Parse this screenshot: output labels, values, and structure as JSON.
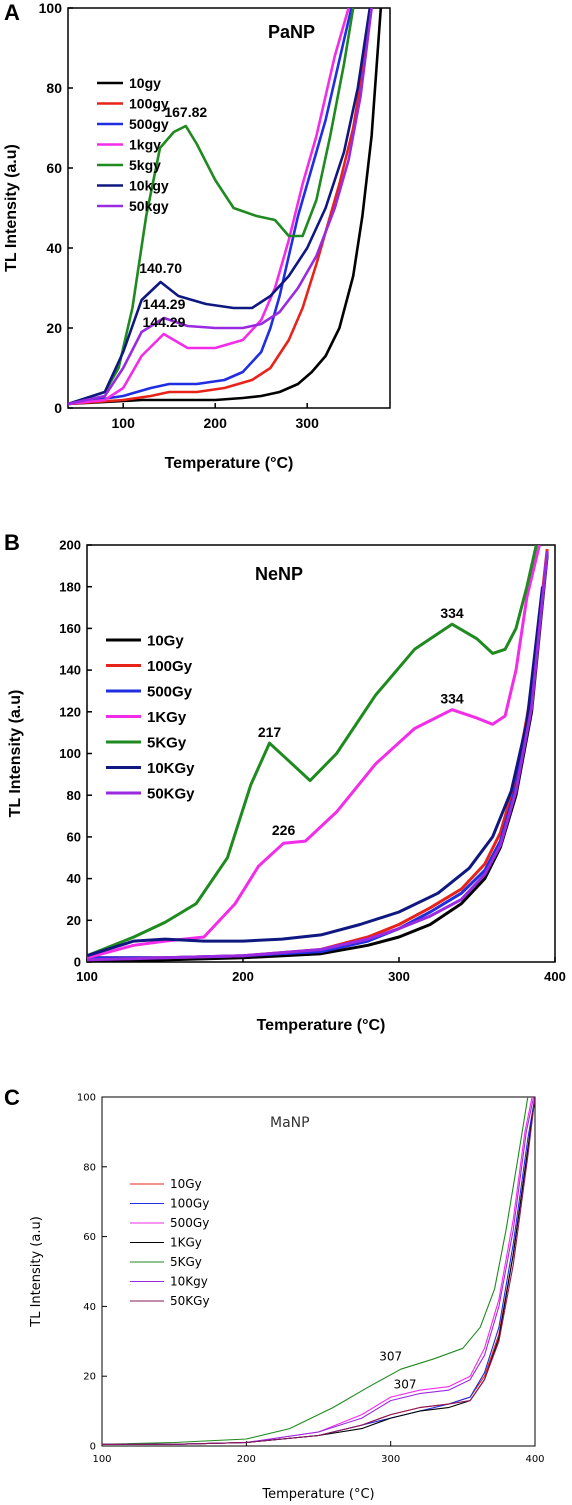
{
  "chart_data": [
    {
      "type": "line",
      "panel_label": "A",
      "title": "PaNP",
      "xlabel": "Temperature (°C)",
      "ylabel": "TL Intensity (a.u)",
      "xlim": [
        40,
        390
      ],
      "ylim": [
        0,
        100
      ],
      "xticks": [
        100,
        200,
        300
      ],
      "yticks": [
        0,
        20,
        40,
        60,
        80,
        100
      ],
      "legend": "top-left",
      "series": [
        {
          "name": "10gy",
          "color": "#000000",
          "x": [
            40,
            80,
            120,
            160,
            200,
            230,
            250,
            270,
            290,
            305,
            320,
            335,
            350,
            360,
            370,
            380
          ],
          "y": [
            1,
            1.5,
            2,
            2,
            2,
            2.5,
            3,
            4,
            6,
            9,
            13,
            20,
            33,
            48,
            68,
            100
          ]
        },
        {
          "name": "100gy",
          "color": "#e8231a",
          "x": [
            40,
            100,
            130,
            150,
            180,
            210,
            240,
            260,
            280,
            295,
            310,
            320,
            335,
            350,
            360,
            370
          ],
          "y": [
            1,
            2,
            3,
            4,
            4,
            5,
            7,
            10,
            17,
            25,
            36,
            44,
            56,
            70,
            84,
            100
          ]
        },
        {
          "name": "500gy",
          "color": "#1e2ee0",
          "x": [
            40,
            100,
            130,
            150,
            180,
            210,
            230,
            250,
            260,
            270,
            280,
            290,
            300,
            310,
            320,
            330,
            340,
            348
          ],
          "y": [
            1,
            3,
            5,
            6,
            6,
            7,
            9,
            14,
            20,
            28,
            38,
            48,
            56,
            64,
            72,
            82,
            92,
            100
          ]
        },
        {
          "name": "1kgy",
          "color": "#f22ce8",
          "x": [
            40,
            80,
            100,
            120,
            144,
            170,
            200,
            230,
            250,
            265,
            280,
            295,
            310,
            320,
            330,
            345
          ],
          "y": [
            1,
            2,
            5,
            13,
            18.5,
            15,
            15,
            17,
            22,
            30,
            42,
            56,
            68,
            78,
            88,
            100
          ]
        },
        {
          "name": "5kgy",
          "color": "#1f8a1f",
          "x": [
            40,
            80,
            95,
            110,
            125,
            140,
            155,
            168,
            180,
            200,
            220,
            245,
            265,
            280,
            295,
            310,
            325,
            340,
            350
          ],
          "y": [
            1,
            4,
            10,
            25,
            48,
            65,
            69,
            70.5,
            66,
            57,
            50,
            48,
            47,
            43,
            43,
            52,
            68,
            86,
            100
          ]
        },
        {
          "name": "10kgy",
          "color": "#0f1880",
          "x": [
            40,
            80,
            100,
            120,
            140.7,
            160,
            190,
            220,
            240,
            260,
            280,
            300,
            320,
            340,
            355,
            368
          ],
          "y": [
            1,
            4,
            14,
            27,
            31.5,
            28,
            26,
            25,
            25,
            28,
            33,
            40,
            50,
            64,
            80,
            100
          ]
        },
        {
          "name": "50kgy",
          "color": "#9a2ae0",
          "x": [
            40,
            80,
            100,
            120,
            144.3,
            170,
            200,
            230,
            250,
            270,
            290,
            310,
            330,
            345,
            358,
            370
          ],
          "y": [
            1,
            3,
            10,
            19,
            22.5,
            20.5,
            20,
            20,
            21,
            24,
            30,
            38,
            50,
            62,
            78,
            100
          ]
        }
      ],
      "annotations": [
        {
          "text": "167.82",
          "x": 168,
          "y": 71
        },
        {
          "text": "140.70",
          "x": 140.7,
          "y": 32
        },
        {
          "text": "144.29",
          "x": 144.3,
          "y": 23
        },
        {
          "text": "144.29",
          "x": 144.3,
          "y": 18.5
        }
      ]
    },
    {
      "type": "line",
      "panel_label": "B",
      "title": "NeNP",
      "xlabel": "Temperature (°C)",
      "ylabel": "TL Intensity (a.u)",
      "xlim": [
        100,
        400
      ],
      "ylim": [
        0,
        200
      ],
      "xticks": [
        100,
        200,
        300,
        400
      ],
      "yticks": [
        0,
        20,
        40,
        60,
        80,
        100,
        120,
        140,
        160,
        180,
        200
      ],
      "legend": "top-left",
      "series": [
        {
          "name": "10Gy",
          "color": "#000000",
          "x": [
            100,
            150,
            200,
            250,
            280,
            300,
            320,
            340,
            355,
            365,
            375,
            385,
            395
          ],
          "y": [
            0,
            1,
            2,
            4,
            8,
            12,
            18,
            28,
            40,
            55,
            80,
            120,
            195
          ]
        },
        {
          "name": "100Gy",
          "color": "#e8231a",
          "x": [
            100,
            150,
            200,
            250,
            280,
            300,
            320,
            340,
            355,
            365,
            375,
            385,
            395
          ],
          "y": [
            2,
            2,
            3,
            6,
            12,
            18,
            26,
            35,
            47,
            62,
            88,
            130,
            198
          ]
        },
        {
          "name": "500Gy",
          "color": "#1e2ee0",
          "x": [
            100,
            150,
            200,
            250,
            280,
            300,
            320,
            340,
            355,
            365,
            375,
            385,
            395
          ],
          "y": [
            2,
            2,
            3,
            5,
            10,
            16,
            24,
            33,
            44,
            58,
            84,
            125,
            196
          ]
        },
        {
          "name": "1KGy",
          "color": "#f22ce8",
          "x": [
            100,
            130,
            150,
            175,
            195,
            210,
            226,
            240,
            260,
            285,
            310,
            334,
            350,
            360,
            368,
            375,
            382,
            390
          ],
          "y": [
            2,
            8,
            10,
            12,
            28,
            46,
            57,
            58,
            72,
            95,
            112,
            121,
            117,
            114,
            118,
            140,
            175,
            200
          ]
        },
        {
          "name": "5KGy",
          "color": "#1f8a1f",
          "x": [
            100,
            130,
            150,
            170,
            190,
            205,
            217,
            230,
            243,
            260,
            285,
            310,
            334,
            350,
            360,
            368,
            375,
            382,
            388
          ],
          "y": [
            3,
            12,
            19,
            28,
            50,
            85,
            105,
            96,
            87,
            100,
            128,
            150,
            162,
            155,
            148,
            150,
            160,
            180,
            200
          ]
        },
        {
          "name": "10KGy",
          "color": "#0f1880",
          "x": [
            100,
            130,
            150,
            175,
            200,
            225,
            250,
            275,
            300,
            325,
            345,
            360,
            372,
            382,
            392
          ],
          "y": [
            3,
            10,
            11,
            10,
            10,
            11,
            13,
            18,
            24,
            33,
            45,
            60,
            82,
            115,
            180
          ]
        },
        {
          "name": "50KGy",
          "color": "#9a2ae0",
          "x": [
            100,
            150,
            200,
            250,
            280,
            300,
            320,
            340,
            355,
            365,
            375,
            385,
            395
          ],
          "y": [
            1,
            2,
            3,
            6,
            11,
            16,
            22,
            30,
            42,
            56,
            82,
            122,
            197
          ]
        }
      ],
      "annotations": [
        {
          "text": "217",
          "x": 217,
          "y": 105
        },
        {
          "text": "226",
          "x": 226,
          "y": 58
        },
        {
          "text": "334",
          "x": 334,
          "y": 162
        },
        {
          "text": "334",
          "x": 334,
          "y": 121
        }
      ]
    },
    {
      "type": "line",
      "panel_label": "C",
      "title": "MaNP",
      "xlabel": "Temperature (°C)",
      "ylabel": "TL Intensity (a.u)",
      "xlim": [
        100,
        400
      ],
      "ylim": [
        0,
        100
      ],
      "xticks": [
        100,
        200,
        300,
        400
      ],
      "yticks": [
        0,
        20,
        40,
        60,
        80,
        100
      ],
      "legend": "top-left",
      "series": [
        {
          "name": "10Gy",
          "color": "#e8231a",
          "x": [
            100,
            150,
            200,
            250,
            280,
            300,
            320,
            340,
            355,
            365,
            375,
            385,
            395,
            400
          ],
          "y": [
            0.5,
            0.5,
            1,
            3,
            6,
            9,
            11,
            12,
            14,
            20,
            32,
            55,
            85,
            100
          ]
        },
        {
          "name": "100Gy",
          "color": "#1e2ee0",
          "x": [
            100,
            150,
            200,
            250,
            280,
            300,
            320,
            340,
            355,
            365,
            375,
            385,
            395,
            400
          ],
          "y": [
            0.5,
            0.5,
            1,
            3,
            6,
            8,
            10,
            12,
            14,
            21,
            34,
            58,
            88,
            100
          ]
        },
        {
          "name": "500Gy",
          "color": "#f22ce8",
          "x": [
            100,
            150,
            200,
            250,
            280,
            300,
            320,
            340,
            355,
            365,
            375,
            385,
            393,
            398
          ],
          "y": [
            0.5,
            0.5,
            1,
            4,
            9,
            14,
            16,
            17,
            20,
            28,
            42,
            65,
            90,
            100
          ]
        },
        {
          "name": "1KGy",
          "color": "#000000",
          "x": [
            100,
            150,
            200,
            250,
            280,
            300,
            320,
            340,
            355,
            365,
            375,
            385,
            395,
            400
          ],
          "y": [
            0.5,
            0.5,
            1,
            3,
            5,
            8,
            10,
            11,
            13,
            19,
            31,
            55,
            85,
            100
          ]
        },
        {
          "name": "5KGy",
          "color": "#1f8a1f",
          "x": [
            100,
            150,
            200,
            230,
            260,
            285,
            307,
            330,
            350,
            362,
            372,
            380,
            388,
            395
          ],
          "y": [
            0.5,
            1,
            2,
            5,
            11,
            17,
            22,
            25,
            28,
            34,
            45,
            62,
            82,
            100
          ]
        },
        {
          "name": "10Kgy",
          "color": "#9a2ae0",
          "x": [
            100,
            150,
            200,
            250,
            280,
            300,
            320,
            340,
            355,
            365,
            375,
            385,
            394,
            399
          ],
          "y": [
            0.5,
            0.5,
            1,
            4,
            8,
            13,
            15,
            16,
            19,
            26,
            40,
            62,
            90,
            100
          ]
        },
        {
          "name": "50KGy",
          "color": "#8a1a5a",
          "x": [
            100,
            150,
            200,
            250,
            280,
            300,
            320,
            340,
            355,
            365,
            375,
            385,
            395,
            400
          ],
          "y": [
            0.5,
            0.5,
            1,
            3,
            6,
            9,
            11,
            12,
            13,
            19,
            30,
            52,
            83,
            100
          ]
        }
      ],
      "annotations": [
        {
          "text": "307",
          "x": 300,
          "y": 23
        },
        {
          "text": "307",
          "x": 310,
          "y": 15
        }
      ]
    }
  ]
}
